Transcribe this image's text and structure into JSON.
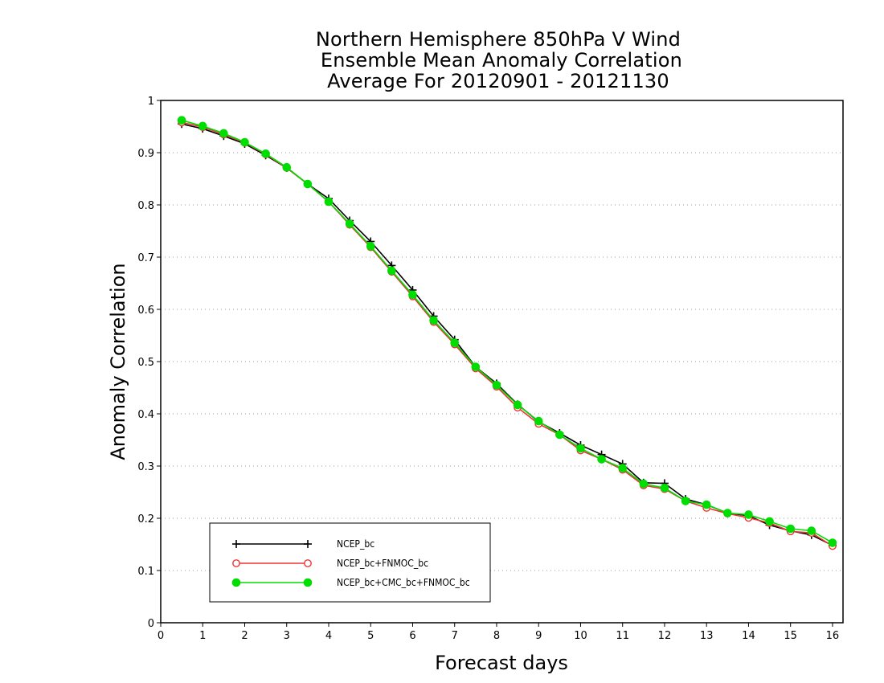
{
  "chart_data": {
    "type": "line",
    "title_lines": [
      "Northern Hemisphere 850hPa V Wind",
      "Ensemble Mean Anomaly Correlation",
      "Average For 20120901 - 20121130"
    ],
    "xlabel": "Forecast days",
    "ylabel": "Anomaly Correlation",
    "xlim": [
      0,
      16.25
    ],
    "ylim": [
      0,
      1
    ],
    "x_ticks": [
      "0",
      "1",
      "2",
      "3",
      "4",
      "5",
      "6",
      "7",
      "8",
      "9",
      "10",
      "11",
      "12",
      "13",
      "14",
      "15",
      "16"
    ],
    "y_ticks": [
      "0",
      "0.1",
      "0.2",
      "0.3",
      "0.4",
      "0.5",
      "0.6",
      "0.7",
      "0.8",
      "0.9",
      "1"
    ],
    "grid": "horizontal dotted",
    "legend_position": "bottom-left",
    "x": [
      0.5,
      1,
      1.5,
      2,
      2.5,
      3,
      3.5,
      4,
      4.5,
      5,
      5.5,
      6,
      6.5,
      7,
      7.5,
      8,
      8.5,
      9,
      9.5,
      10,
      10.5,
      11,
      11.5,
      12,
      12.5,
      13,
      13.5,
      14,
      14.5,
      15,
      15.5,
      16
    ],
    "series": [
      {
        "name": "NCEP_bc",
        "color": "#000000",
        "marker": "plus",
        "values": [
          0.955,
          0.946,
          0.932,
          0.917,
          0.895,
          0.871,
          0.84,
          0.812,
          0.77,
          0.73,
          0.684,
          0.637,
          0.587,
          0.542,
          0.49,
          0.458,
          0.418,
          0.385,
          0.363,
          0.34,
          0.322,
          0.304,
          0.268,
          0.267,
          0.237,
          0.226,
          0.21,
          0.205,
          0.187,
          0.176,
          0.168,
          0.148
        ]
      },
      {
        "name": "NCEP_bc+FNMOC_bc",
        "color": "#ee3333",
        "marker": "open-circle",
        "values": [
          0.958,
          0.949,
          0.935,
          0.919,
          0.897,
          0.871,
          0.84,
          0.806,
          0.762,
          0.719,
          0.672,
          0.625,
          0.576,
          0.533,
          0.487,
          0.452,
          0.412,
          0.381,
          0.36,
          0.33,
          0.313,
          0.293,
          0.263,
          0.256,
          0.233,
          0.22,
          0.209,
          0.201,
          0.191,
          0.175,
          0.172,
          0.147
        ]
      },
      {
        "name": "NCEP_bc+CMC_bc+FNMOC_bc",
        "color": "#00dd00",
        "marker": "filled-circle",
        "values": [
          0.962,
          0.951,
          0.937,
          0.92,
          0.898,
          0.872,
          0.84,
          0.806,
          0.764,
          0.721,
          0.674,
          0.628,
          0.579,
          0.536,
          0.49,
          0.455,
          0.417,
          0.386,
          0.36,
          0.334,
          0.313,
          0.296,
          0.266,
          0.258,
          0.233,
          0.226,
          0.21,
          0.207,
          0.194,
          0.18,
          0.176,
          0.153
        ]
      }
    ]
  }
}
